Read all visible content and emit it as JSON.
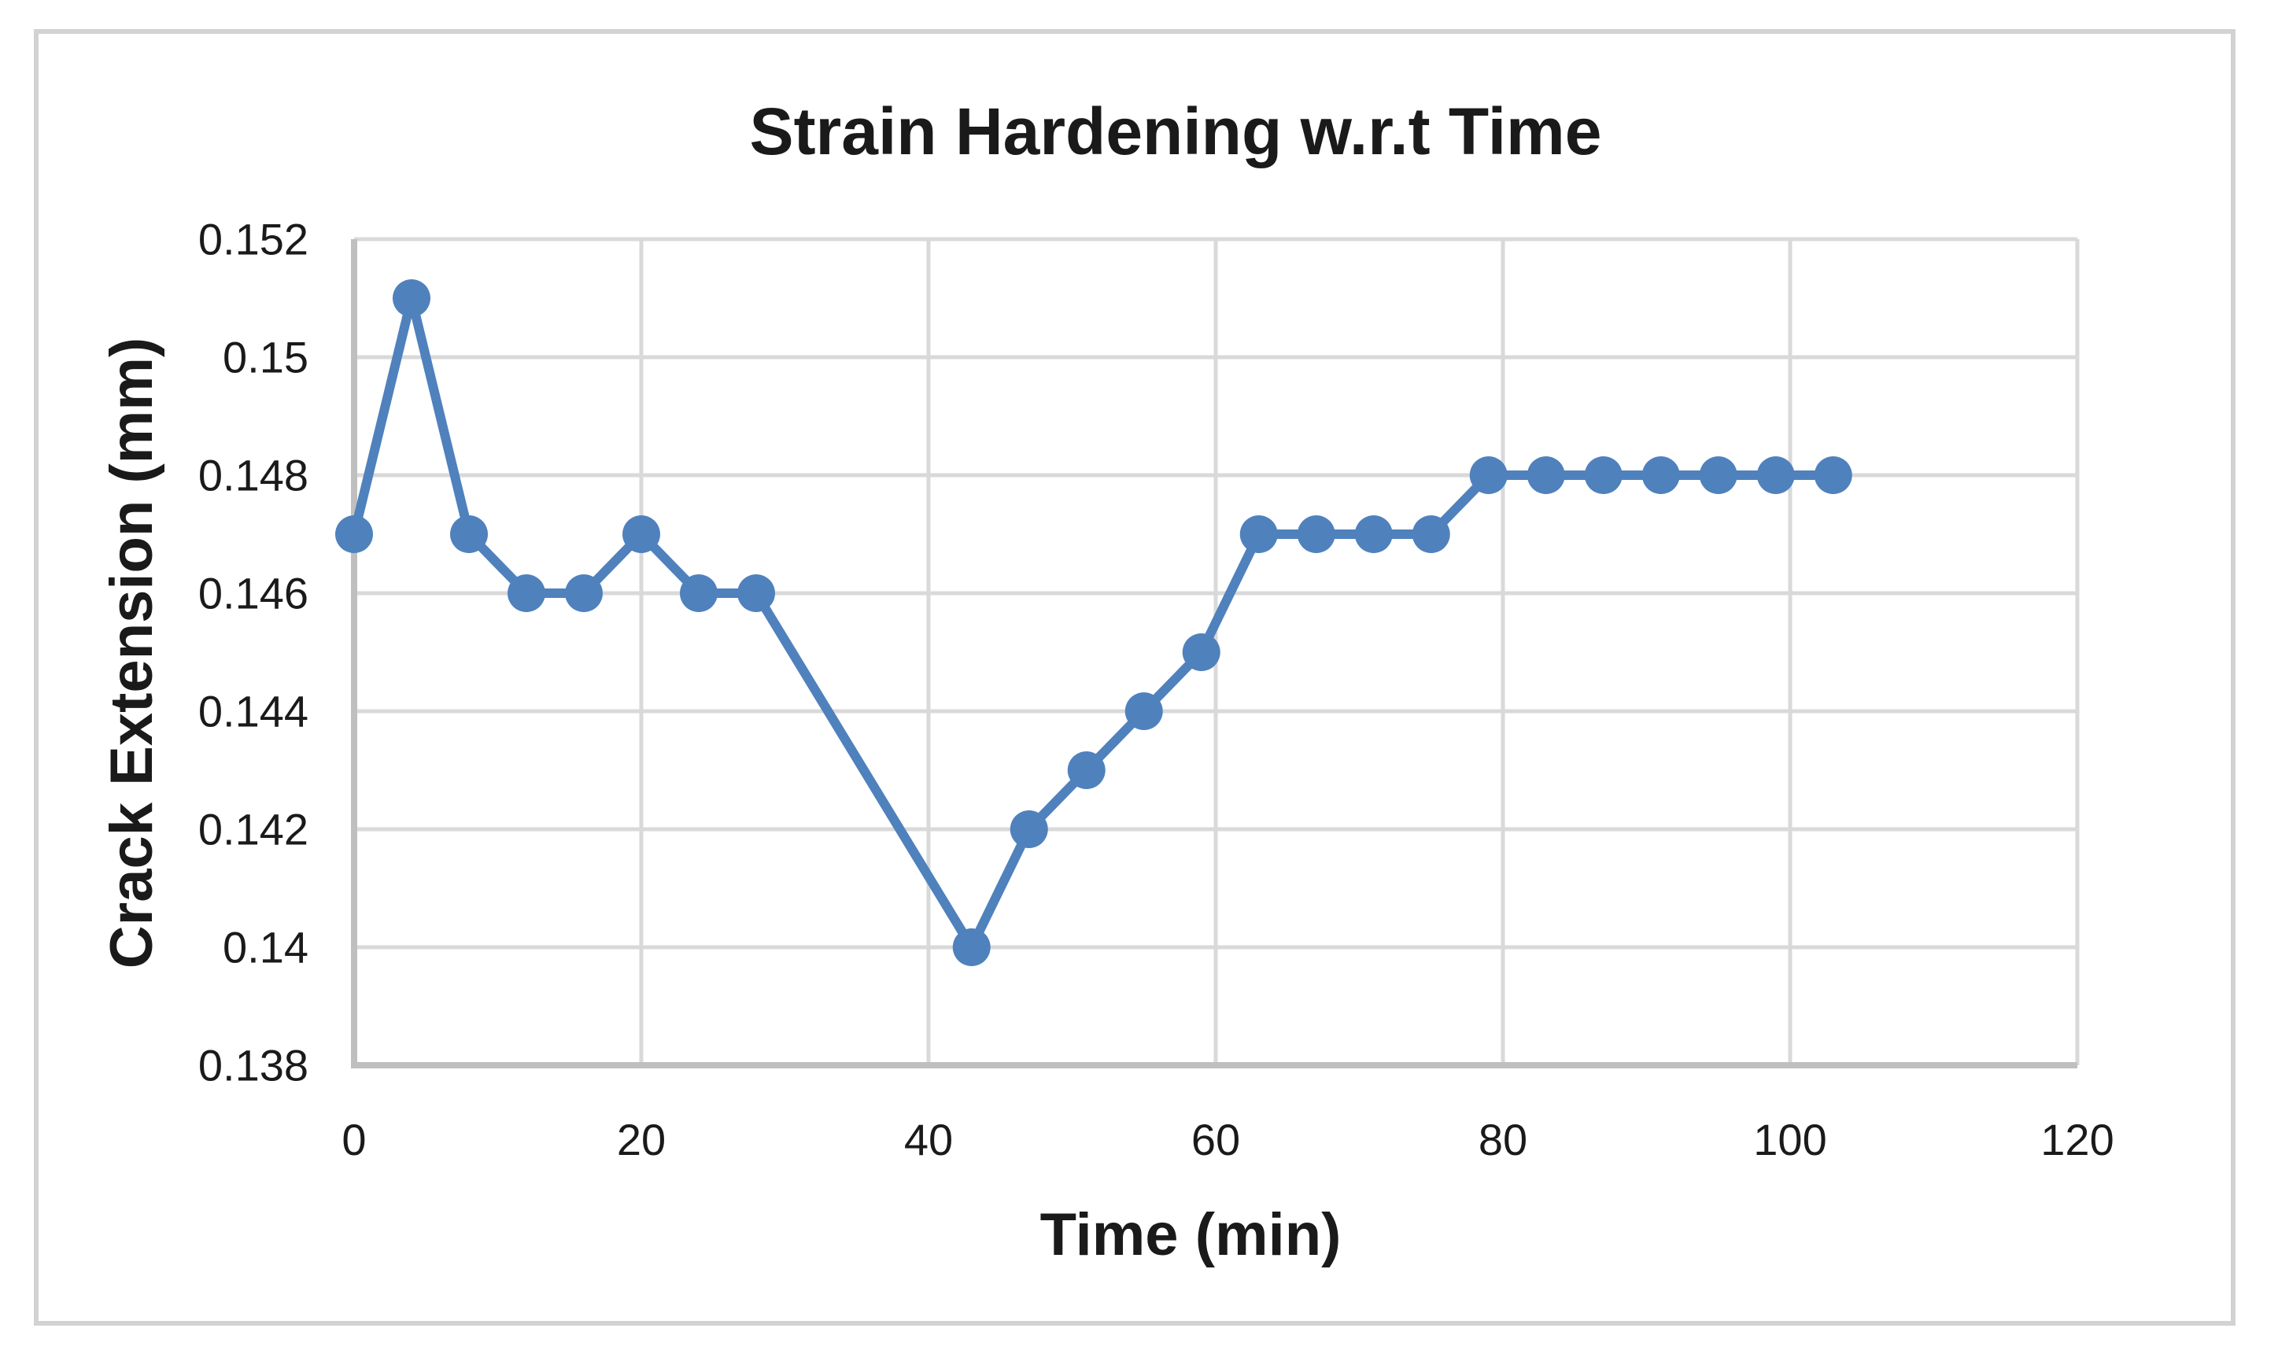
{
  "chart": {
    "colors": {
      "series": "#4F81BD",
      "gridline": "#D9D9D9",
      "axis": "#BFBFBF",
      "text": "#1A1A1A",
      "border": "#D2D2D2",
      "background": "#FFFFFF"
    }
  },
  "chart_data": {
    "type": "line",
    "title": "Strain Hardening w.r.t Time",
    "xlabel": "Time (min)",
    "ylabel": "Crack Extension (mm)",
    "xlim": [
      0,
      120
    ],
    "ylim": [
      0.138,
      0.152
    ],
    "grid": true,
    "legend": false,
    "marker": "circle",
    "x_ticks": [
      0,
      20,
      40,
      60,
      80,
      100,
      120
    ],
    "x_tick_labels": [
      "0",
      "20",
      "40",
      "60",
      "80",
      "100",
      "120"
    ],
    "y_ticks": [
      0.152,
      0.15,
      0.148,
      0.146,
      0.144,
      0.142,
      0.14,
      0.138
    ],
    "y_tick_labels": [
      "0.152",
      "0.15",
      "0.148",
      "0.146",
      "0.144",
      "0.142",
      "0.14",
      "0.138"
    ],
    "x": [
      0,
      4,
      8,
      12,
      16,
      20,
      24,
      28,
      43,
      47,
      51,
      55,
      59,
      63,
      67,
      71,
      75,
      79,
      83,
      87,
      91,
      95,
      99,
      103
    ],
    "y": [
      0.147,
      0.151,
      0.147,
      0.146,
      0.146,
      0.147,
      0.146,
      0.146,
      0.14,
      0.142,
      0.143,
      0.144,
      0.145,
      0.147,
      0.147,
      0.147,
      0.147,
      0.148,
      0.148,
      0.148,
      0.148,
      0.148,
      0.148,
      0.148
    ]
  }
}
